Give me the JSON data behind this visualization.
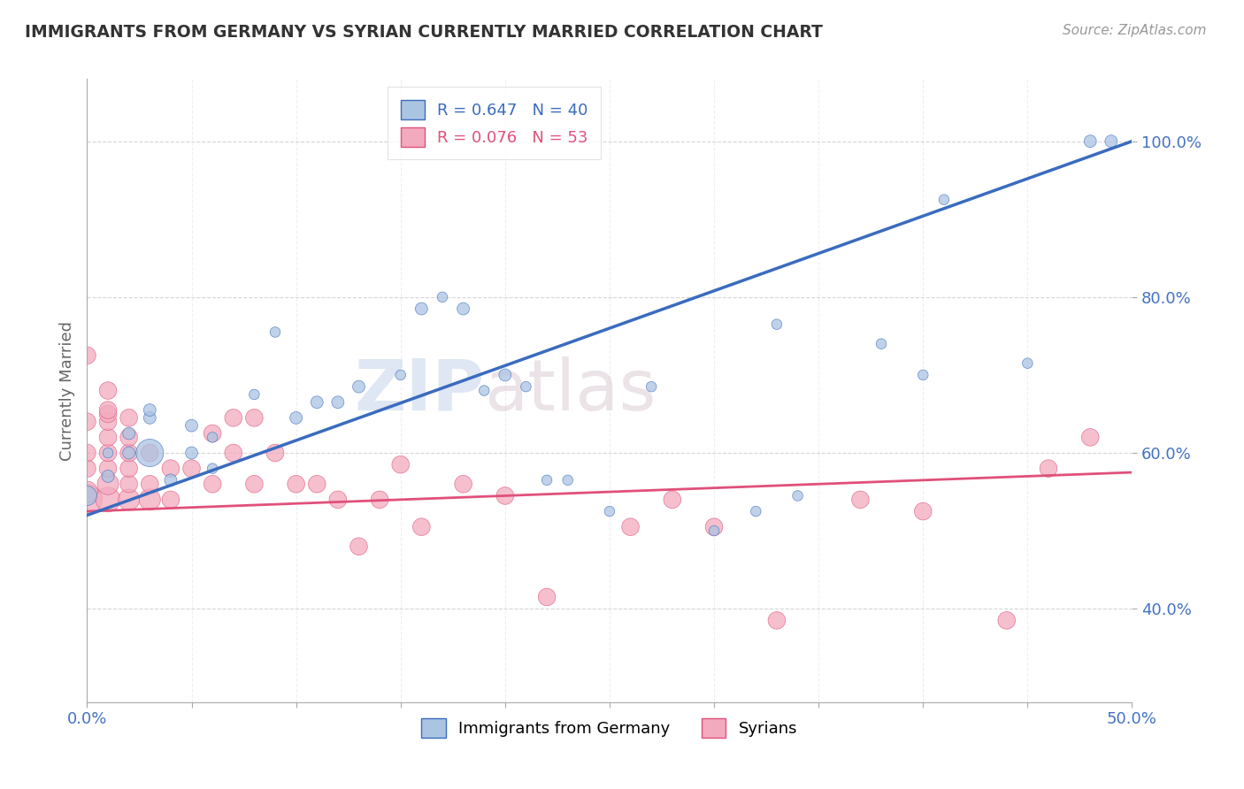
{
  "title": "IMMIGRANTS FROM GERMANY VS SYRIAN CURRENTLY MARRIED CORRELATION CHART",
  "source": "Source: ZipAtlas.com",
  "ylabel": "Currently Married",
  "xlim": [
    0.0,
    0.5
  ],
  "ylim": [
    0.28,
    1.08
  ],
  "x_tick_positions": [
    0.0,
    0.05,
    0.1,
    0.15,
    0.2,
    0.25,
    0.3,
    0.35,
    0.4,
    0.45,
    0.5
  ],
  "y_tick_positions": [
    0.4,
    0.6,
    0.8,
    1.0
  ],
  "y_tick_labels": [
    "40.0%",
    "60.0%",
    "80.0%",
    "100.0%"
  ],
  "germany_R": "0.647",
  "germany_N": "40",
  "syrian_R": "0.076",
  "syrian_N": "53",
  "germany_color": "#aac4e2",
  "syrian_color": "#f2aabe",
  "germany_line_color": "#3a6bbf",
  "syrian_line_color": "#e0507a",
  "legend_label_germany": "Immigrants from Germany",
  "legend_label_syrian": "Syrians",
  "germany_line_x0": 0.0,
  "germany_line_y0": 0.52,
  "germany_line_x1": 0.5,
  "germany_line_y1": 1.0,
  "syrian_line_x0": 0.0,
  "syrian_line_y0": 0.525,
  "syrian_line_x1": 0.5,
  "syrian_line_y1": 0.575,
  "germany_x": [
    0.0,
    0.01,
    0.01,
    0.02,
    0.02,
    0.03,
    0.03,
    0.03,
    0.04,
    0.05,
    0.05,
    0.06,
    0.06,
    0.08,
    0.09,
    0.1,
    0.11,
    0.12,
    0.13,
    0.15,
    0.16,
    0.17,
    0.18,
    0.19,
    0.2,
    0.21,
    0.22,
    0.23,
    0.25,
    0.27,
    0.3,
    0.32,
    0.33,
    0.34,
    0.38,
    0.4,
    0.41,
    0.45,
    0.48,
    0.49
  ],
  "germany_y": [
    0.545,
    0.57,
    0.6,
    0.6,
    0.625,
    0.6,
    0.645,
    0.655,
    0.565,
    0.6,
    0.635,
    0.58,
    0.62,
    0.675,
    0.755,
    0.645,
    0.665,
    0.665,
    0.685,
    0.7,
    0.785,
    0.8,
    0.785,
    0.68,
    0.7,
    0.685,
    0.565,
    0.565,
    0.525,
    0.685,
    0.5,
    0.525,
    0.765,
    0.545,
    0.74,
    0.7,
    0.925,
    0.715,
    1.0,
    1.0
  ],
  "germany_size": [
    250,
    100,
    70,
    100,
    100,
    500,
    100,
    100,
    100,
    100,
    100,
    70,
    70,
    70,
    70,
    100,
    100,
    100,
    100,
    70,
    100,
    70,
    100,
    70,
    100,
    70,
    70,
    70,
    70,
    70,
    70,
    70,
    70,
    70,
    70,
    70,
    70,
    70,
    100,
    100
  ],
  "syrian_x": [
    0.0,
    0.0,
    0.0,
    0.0,
    0.0,
    0.0,
    0.01,
    0.01,
    0.01,
    0.01,
    0.01,
    0.01,
    0.01,
    0.01,
    0.01,
    0.02,
    0.02,
    0.02,
    0.02,
    0.02,
    0.02,
    0.03,
    0.03,
    0.03,
    0.04,
    0.04,
    0.05,
    0.06,
    0.06,
    0.07,
    0.07,
    0.08,
    0.08,
    0.09,
    0.1,
    0.11,
    0.12,
    0.13,
    0.14,
    0.15,
    0.16,
    0.18,
    0.2,
    0.22,
    0.26,
    0.28,
    0.3,
    0.33,
    0.37,
    0.4,
    0.44,
    0.46,
    0.48
  ],
  "syrian_y": [
    0.54,
    0.55,
    0.58,
    0.6,
    0.64,
    0.725,
    0.54,
    0.56,
    0.58,
    0.6,
    0.62,
    0.64,
    0.65,
    0.655,
    0.68,
    0.54,
    0.56,
    0.58,
    0.6,
    0.62,
    0.645,
    0.54,
    0.56,
    0.6,
    0.54,
    0.58,
    0.58,
    0.56,
    0.625,
    0.6,
    0.645,
    0.56,
    0.645,
    0.6,
    0.56,
    0.56,
    0.54,
    0.48,
    0.54,
    0.585,
    0.505,
    0.56,
    0.545,
    0.415,
    0.505,
    0.54,
    0.505,
    0.385,
    0.54,
    0.525,
    0.385,
    0.58,
    0.62
  ],
  "syrian_size": [
    600,
    300,
    200,
    200,
    200,
    200,
    400,
    300,
    200,
    200,
    200,
    200,
    200,
    200,
    200,
    300,
    200,
    200,
    200,
    200,
    200,
    300,
    200,
    200,
    200,
    200,
    200,
    200,
    200,
    200,
    200,
    200,
    200,
    200,
    200,
    200,
    200,
    200,
    200,
    200,
    200,
    200,
    200,
    200,
    200,
    200,
    200,
    200,
    200,
    200,
    200,
    200,
    200
  ]
}
